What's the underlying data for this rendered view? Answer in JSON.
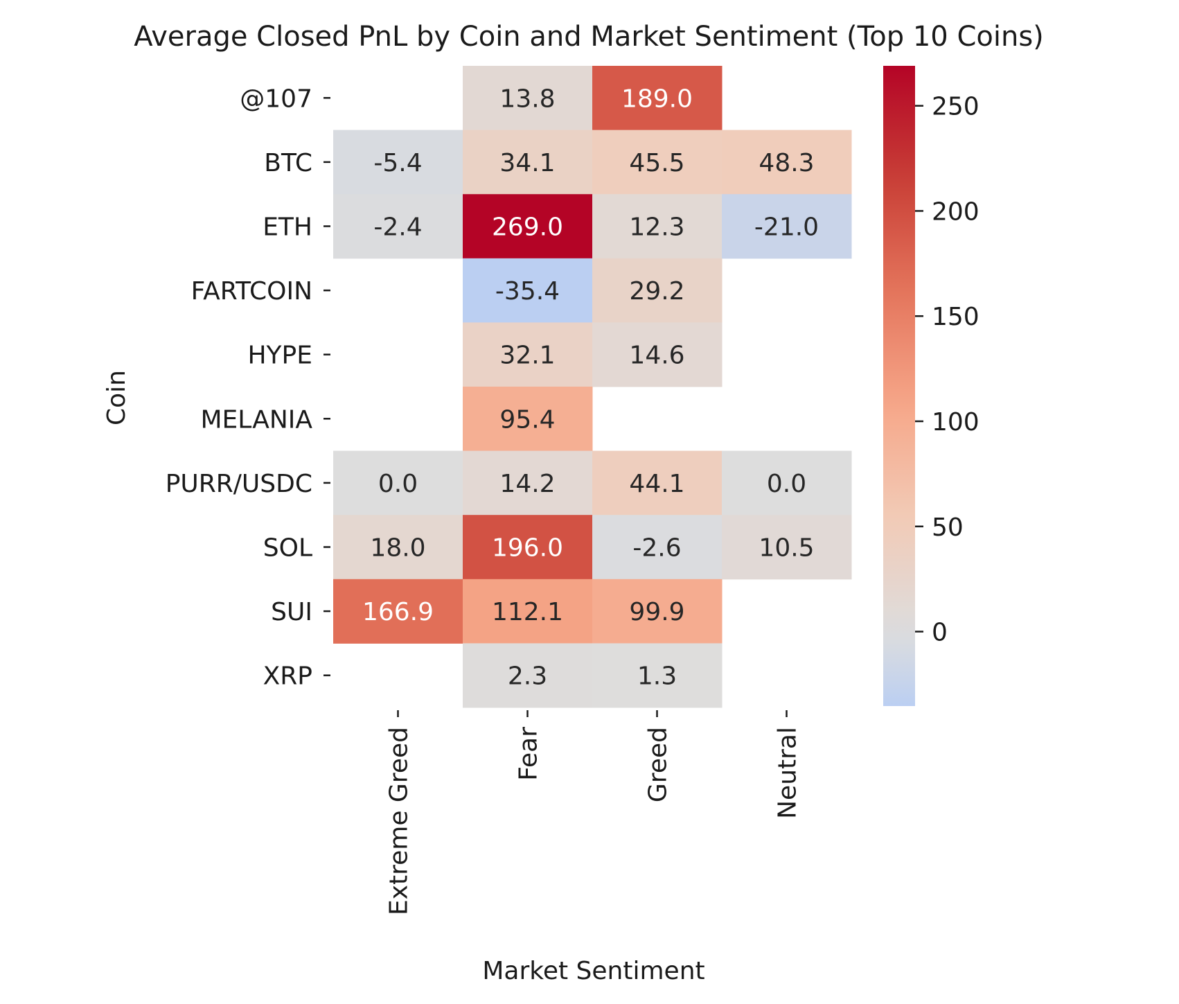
{
  "chart_data": {
    "type": "heatmap",
    "title": "Average Closed PnL by Coin and Market Sentiment (Top 10 Coins)",
    "xlabel": "Market Sentiment",
    "ylabel": "Coin",
    "x_categories": [
      "Extreme Greed",
      "Fear",
      "Greed",
      "Neutral"
    ],
    "y_categories": [
      "@107",
      "BTC",
      "ETH",
      "FARTCOIN",
      "HYPE",
      "MELANIA",
      "PURR/USDC",
      "SOL",
      "SUI",
      "XRP"
    ],
    "values": [
      [
        null,
        13.8,
        189.0,
        null
      ],
      [
        -5.4,
        34.1,
        45.5,
        48.3
      ],
      [
        -2.4,
        269.0,
        12.3,
        -21.0
      ],
      [
        null,
        -35.4,
        29.2,
        null
      ],
      [
        null,
        32.1,
        14.6,
        null
      ],
      [
        null,
        95.4,
        null,
        null
      ],
      [
        0.0,
        14.2,
        44.1,
        0.0
      ],
      [
        18.0,
        196.0,
        -2.6,
        10.5
      ],
      [
        166.9,
        112.1,
        99.9,
        null
      ],
      [
        null,
        2.3,
        1.3,
        null
      ]
    ],
    "colormap": "coolwarm",
    "center": 0,
    "colorbar": {
      "range": [
        -35.4,
        269.0
      ],
      "ticks": [
        0,
        50,
        100,
        150,
        200,
        250
      ]
    },
    "annotations": "cell values with 1 decimal"
  }
}
